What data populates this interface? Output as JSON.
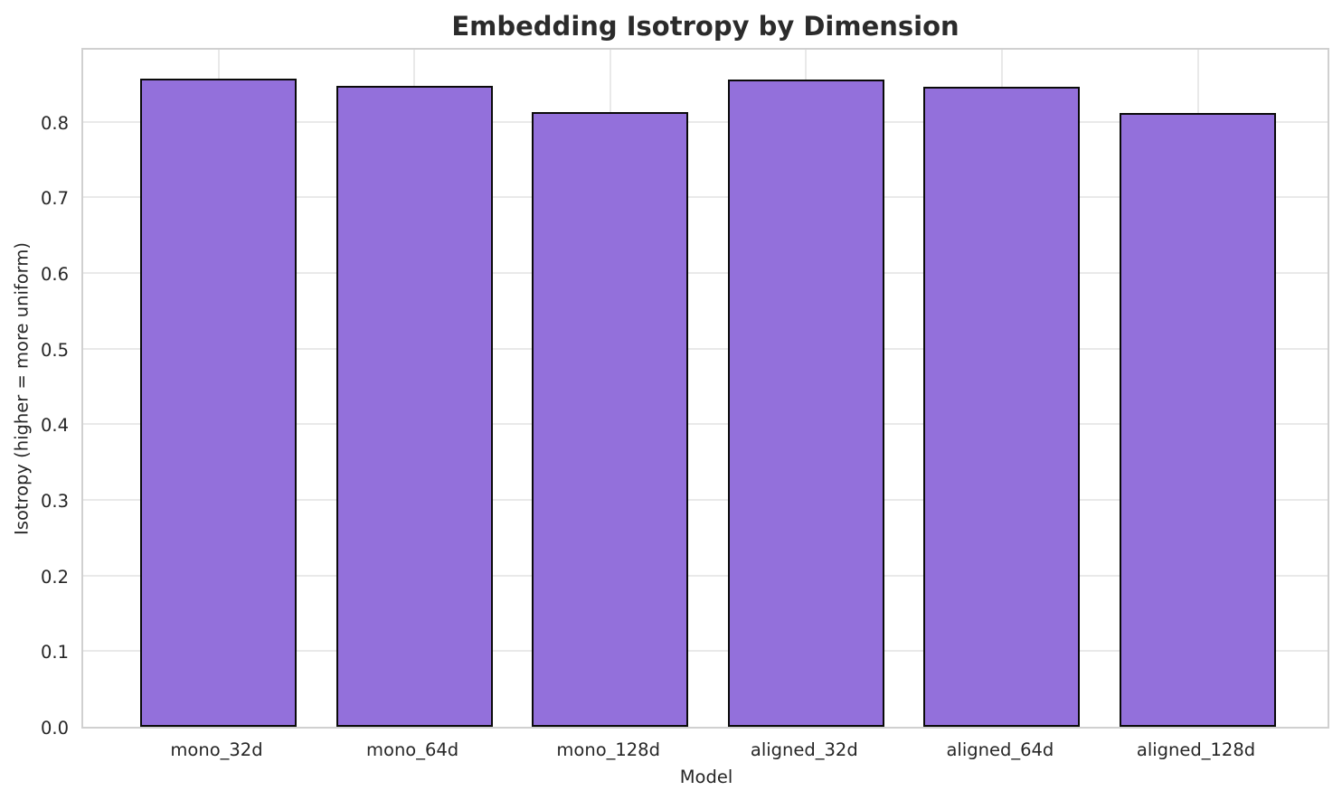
{
  "chart_data": {
    "type": "bar",
    "title": "Embedding Isotropy by Dimension",
    "xlabel": "Model",
    "ylabel": "Isotropy (higher = more uniform)",
    "categories": [
      "mono_32d",
      "mono_64d",
      "mono_128d",
      "aligned_32d",
      "aligned_64d",
      "aligned_128d"
    ],
    "values": [
      0.857,
      0.847,
      0.813,
      0.856,
      0.846,
      0.812
    ],
    "ylim": [
      0.0,
      0.9
    ],
    "yticks": [
      0.0,
      0.1,
      0.2,
      0.3,
      0.4,
      0.5,
      0.6,
      0.7,
      0.8
    ],
    "ytick_format_decimals": 1,
    "grid": true,
    "legend": "none",
    "colors": {
      "bar_fill": "#9370DB",
      "bar_edge": "#0a0a0a",
      "grid": "#e9e9e9",
      "spine": "#d0d0d0",
      "text": "#262626",
      "title": "#2b2b2b",
      "background": "#ffffff"
    }
  }
}
